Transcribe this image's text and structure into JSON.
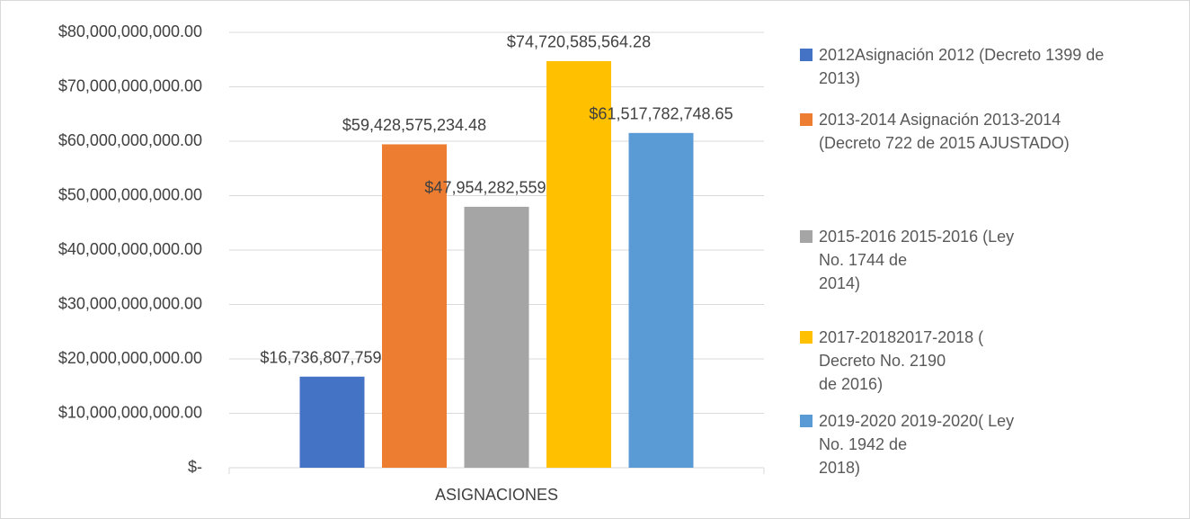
{
  "chart_data": {
    "type": "bar",
    "categories": [
      "ASIGNACIONES"
    ],
    "series": [
      {
        "name": "2012Asignación 2012 (Decreto 1399 de\n2013)",
        "color": "#4472c4",
        "values": [
          16736807759.95
        ],
        "value_labels": [
          "$16,736,807,759.95"
        ]
      },
      {
        "name": "2013-2014 Asignación 2013-2014\n(Decreto 722 de 2015 AJUSTADO)",
        "color": "#ed7d31",
        "values": [
          59428575234.48
        ],
        "value_labels": [
          "$59,428,575,234.48"
        ]
      },
      {
        "name": "2015-2016 2015-2016 (Ley\nNo. 1744 de\n2014)",
        "color": "#a5a5a5",
        "values": [
          47954282559.54
        ],
        "value_labels": [
          "$47,954,282,559.54"
        ]
      },
      {
        "name": "2017-20182017-2018 (\nDecreto No. 2190\nde 2016)",
        "color": "#ffc000",
        "values": [
          74720585564.28
        ],
        "value_labels": [
          "$74,720,585,564.28"
        ]
      },
      {
        "name": "2019-2020 2019-2020( Ley\nNo. 1942 de\n2018)",
        "color": "#5b9bd5",
        "values": [
          61517782748.65
        ],
        "value_labels": [
          "$61,517,782,748.65"
        ]
      }
    ],
    "ylim": [
      0,
      80000000000
    ],
    "yticks": [
      {
        "value": 0,
        "label": "$-"
      },
      {
        "value": 10000000000,
        "label": "$10,000,000,000.00"
      },
      {
        "value": 20000000000,
        "label": "$20,000,000,000.00"
      },
      {
        "value": 30000000000,
        "label": "$30,000,000,000.00"
      },
      {
        "value": 40000000000,
        "label": "$40,000,000,000.00"
      },
      {
        "value": 50000000000,
        "label": "$50,000,000,000.00"
      },
      {
        "value": 60000000000,
        "label": "$60,000,000,000.00"
      },
      {
        "value": 70000000000,
        "label": "$70,000,000,000.00"
      },
      {
        "value": 80000000000,
        "label": "$80,000,000,000.00"
      }
    ],
    "grid": true,
    "legend": "right"
  }
}
